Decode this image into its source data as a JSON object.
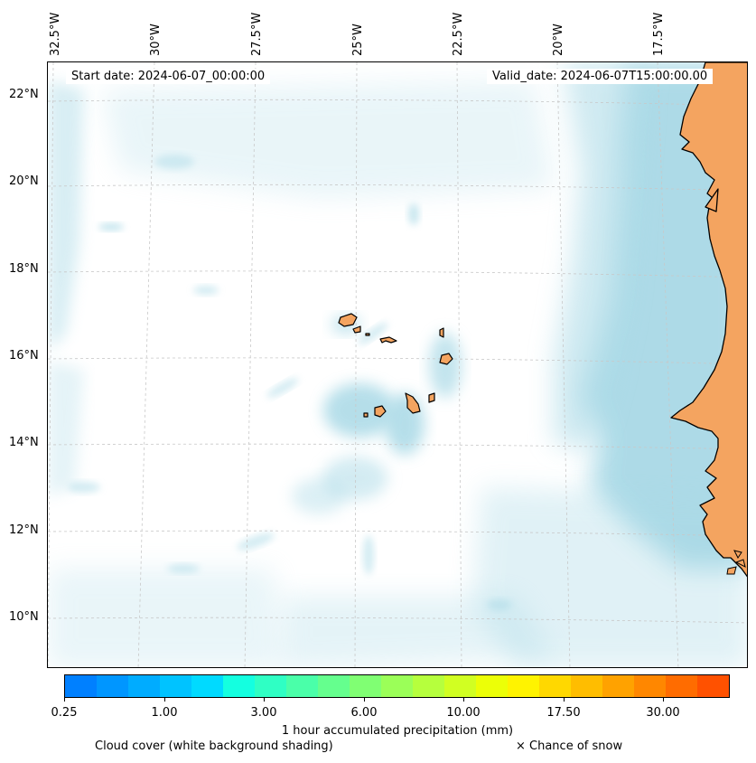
{
  "header": {
    "start_date": "Start date: 2024-06-07_00:00:00",
    "valid_date": "Valid_date: 2024-06-07T15:00:00.00"
  },
  "axes": {
    "longitude_labels": [
      "32.5°W",
      "30°W",
      "27.5°W",
      "25°W",
      "22.5°W",
      "20°W",
      "17.5°W"
    ],
    "latitude_labels": [
      "22°N",
      "20°N",
      "18°N",
      "16°N",
      "14°N",
      "12°N",
      "10°N"
    ]
  },
  "colorbar": {
    "title": "1 hour accumulated precipitation (mm)",
    "tick_labels": [
      "0.25",
      "1.00",
      "3.00",
      "6.00",
      "10.00",
      "17.50",
      "30.00"
    ],
    "colors": [
      "#0080ff",
      "#0096ff",
      "#00acff",
      "#00c3ff",
      "#00daff",
      "#14ffe0",
      "#2fffc4",
      "#4affa9",
      "#65ff8e",
      "#80ff73",
      "#9bff58",
      "#b6ff3d",
      "#d1ff22",
      "#ecff07",
      "#fff300",
      "#ffd800",
      "#ffbd00",
      "#ffa200",
      "#ff8700",
      "#ff6c00",
      "#ff5100"
    ]
  },
  "legend": {
    "cloud_cover": "Cloud cover (white background shading)",
    "snow": "× Chance of snow"
  },
  "colors": {
    "land": "#f4a460",
    "cloud": "#a9d9e6",
    "coastline": "#000000",
    "grid": "#c8c8c8"
  }
}
